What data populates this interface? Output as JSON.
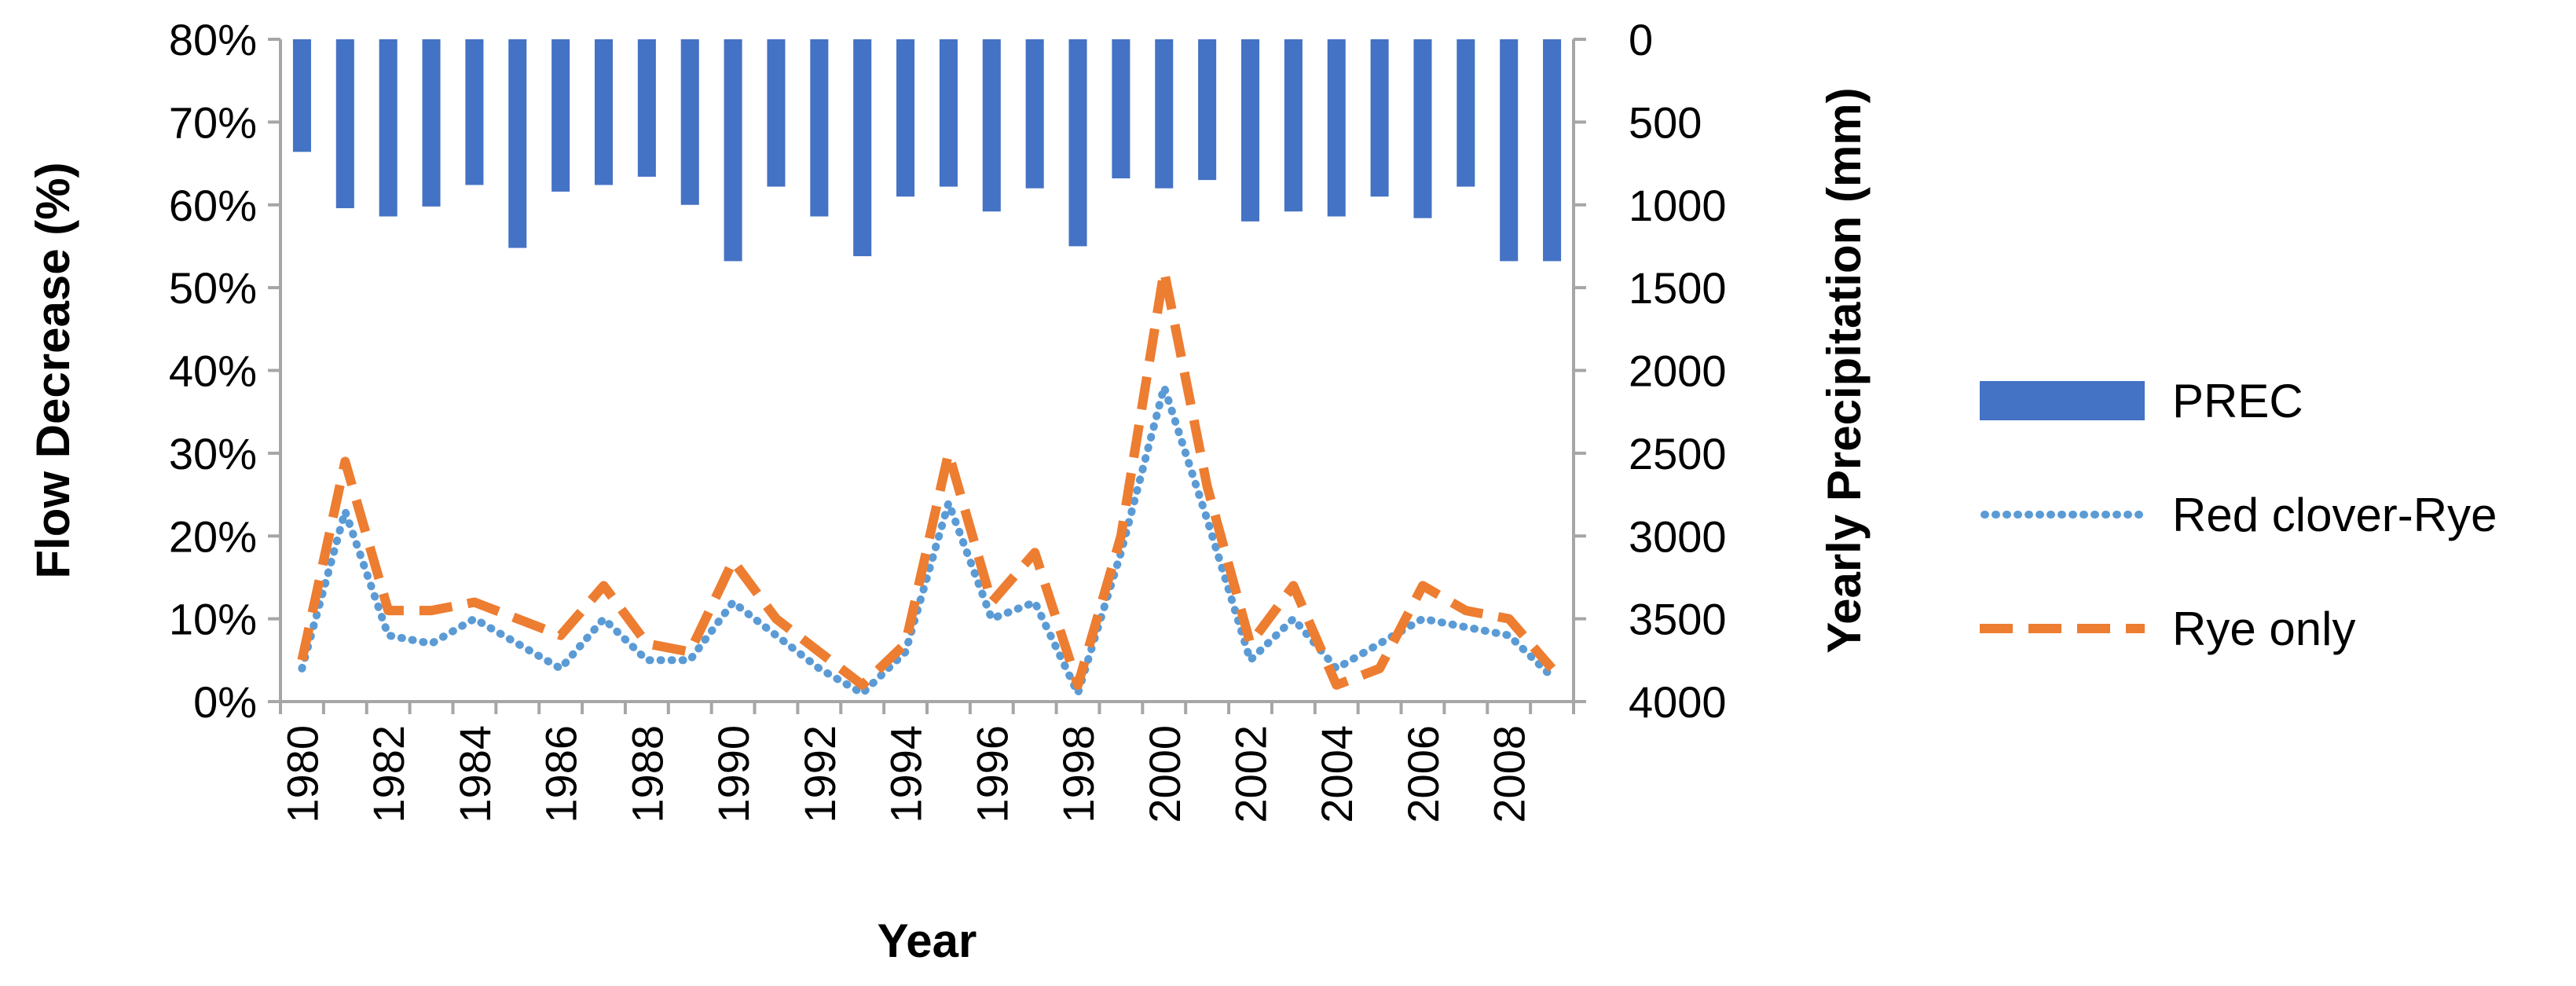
{
  "chart_data": {
    "type": "bar+line",
    "categories": [
      "1980",
      "1981",
      "1982",
      "1983",
      "1984",
      "1985",
      "1986",
      "1987",
      "1988",
      "1989",
      "1990",
      "1991",
      "1992",
      "1993",
      "1994",
      "1995",
      "1996",
      "1997",
      "1998",
      "1999",
      "2000",
      "2001",
      "2002",
      "2003",
      "2004",
      "2005",
      "2006",
      "2007",
      "2008",
      "2009"
    ],
    "x_tick_labels": [
      "1980",
      "1982",
      "1984",
      "1986",
      "1988",
      "1990",
      "1992",
      "1994",
      "1996",
      "1998",
      "2000",
      "2002",
      "2004",
      "2006",
      "2008"
    ],
    "series": [
      {
        "name": "PREC",
        "type": "bar",
        "axis": "right",
        "color": "#4472C4",
        "values": [
          680,
          1020,
          1070,
          1010,
          880,
          1260,
          920,
          880,
          830,
          1000,
          1340,
          890,
          1070,
          1310,
          950,
          890,
          1040,
          900,
          1250,
          840,
          900,
          850,
          1100,
          1040,
          1070,
          950,
          1080,
          890,
          1340,
          1340
        ]
      },
      {
        "name": "Red clover-Rye",
        "type": "line",
        "style": "dotted",
        "axis": "left",
        "color": "#5B9BD5",
        "values": [
          4,
          23,
          8,
          7,
          10,
          7,
          4,
          10,
          5,
          5,
          12,
          8,
          4,
          1,
          6,
          24,
          10,
          12,
          1,
          18,
          38,
          22,
          5,
          10,
          4,
          7,
          10,
          9,
          8,
          3
        ]
      },
      {
        "name": "Rye only",
        "type": "line",
        "style": "dashed",
        "axis": "left",
        "color": "#ED7D31",
        "values": [
          5,
          29,
          11,
          11,
          12,
          10,
          8,
          14,
          7,
          6,
          17,
          10,
          6,
          2,
          7,
          30,
          12,
          18,
          2,
          20,
          52,
          26,
          7,
          14,
          2,
          4,
          14,
          11,
          10,
          4
        ]
      }
    ],
    "xlabel": "Year",
    "ylabel_left": "Flow Decrease (%)",
    "ylabel_right": "Yearly Precipitation (mm)",
    "ylim_left": [
      0,
      80
    ],
    "ylim_right": [
      0,
      4000
    ],
    "right_axis_reversed": true,
    "y_left_ticks": [
      "0%",
      "10%",
      "20%",
      "30%",
      "40%",
      "50%",
      "60%",
      "70%",
      "80%"
    ],
    "y_right_ticks": [
      "0",
      "500",
      "1000",
      "1500",
      "2000",
      "2500",
      "3000",
      "3500",
      "4000"
    ],
    "grid": false,
    "legend_position": "right"
  }
}
